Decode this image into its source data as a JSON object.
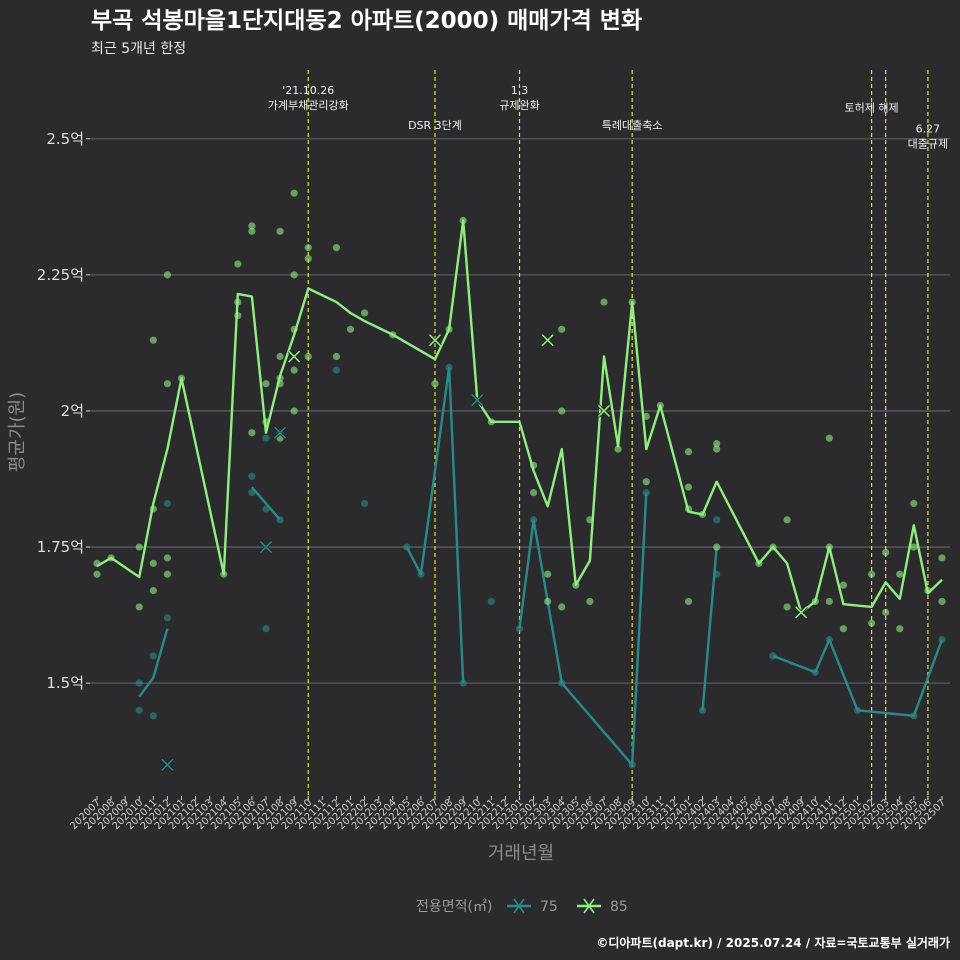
{
  "chart_data": {
    "type": "line",
    "title": "부곡 석봉마을1단지대동2 아파트(2000) 매매가격 변화",
    "subtitle": "최근 5개년 한정",
    "xlabel": "거래년월",
    "ylabel": "평균가(원)",
    "ylim": [
      1.3,
      2.63
    ],
    "yticks": [
      {
        "value": 1.5,
        "label": "1.5억"
      },
      {
        "value": 1.75,
        "label": "1.75억"
      },
      {
        "value": 2.0,
        "label": "2억"
      },
      {
        "value": 2.25,
        "label": "2.25억"
      },
      {
        "value": 2.5,
        "label": "2.5억"
      }
    ],
    "categories": [
      "202007",
      "202008",
      "202009",
      "202010",
      "202011",
      "202012",
      "202101",
      "202102",
      "202103",
      "202104",
      "202105",
      "202106",
      "202107",
      "202108",
      "202109",
      "202110",
      "202111",
      "202112",
      "202201",
      "202202",
      "202203",
      "202204",
      "202205",
      "202206",
      "202207",
      "202208",
      "202209",
      "202210",
      "202211",
      "202212",
      "202301",
      "202302",
      "202303",
      "202304",
      "202305",
      "202306",
      "202307",
      "202308",
      "202309",
      "202310",
      "202311",
      "202312",
      "202401",
      "202402",
      "202403",
      "202404",
      "202405",
      "202406",
      "202407",
      "202408",
      "202409",
      "202410",
      "202411",
      "202412",
      "202501",
      "202502",
      "202503",
      "202504",
      "202505",
      "202506",
      "202507"
    ],
    "grid": true,
    "legend_position": "bottom",
    "legend_title": "전용면적(㎡)",
    "series": [
      {
        "name": "75",
        "color": "#2a8a8a",
        "lines": [
          [
            [
              "202010",
              1.475
            ],
            [
              "202011",
              1.51
            ],
            [
              "202012",
              1.6
            ]
          ],
          [
            [
              "202106",
              1.86
            ],
            [
              "202108",
              1.8
            ]
          ],
          [
            [
              "202205",
              1.75
            ],
            [
              "202206",
              1.7
            ],
            [
              "202208",
              2.08
            ],
            [
              "202209",
              1.5
            ]
          ],
          [
            [
              "202301",
              1.6
            ],
            [
              "202302",
              1.8
            ],
            [
              "202304",
              1.5
            ],
            [
              "202309",
              1.35
            ],
            [
              "202310",
              1.85
            ]
          ],
          [
            [
              "202402",
              1.45
            ],
            [
              "202403",
              1.75
            ]
          ],
          [
            [
              "202407",
              1.55
            ],
            [
              "202410",
              1.52
            ],
            [
              "202411",
              1.58
            ],
            [
              "202501",
              1.45
            ],
            [
              "202505",
              1.44
            ],
            [
              "202507",
              1.58
            ]
          ]
        ],
        "points": [
          [
            "202010",
            1.5
          ],
          [
            "202010",
            1.45
          ],
          [
            "202011",
            1.44
          ],
          [
            "202011",
            1.55
          ],
          [
            "202012",
            1.62
          ],
          [
            "202012",
            1.83
          ],
          [
            "202106",
            1.88
          ],
          [
            "202106",
            1.85
          ],
          [
            "202107",
            1.82
          ],
          [
            "202107",
            1.6
          ],
          [
            "202107",
            1.95
          ],
          [
            "202108",
            1.8
          ],
          [
            "202108",
            1.96
          ],
          [
            "202112",
            2.075
          ],
          [
            "202202",
            1.83
          ],
          [
            "202205",
            1.75
          ],
          [
            "202206",
            1.7
          ],
          [
            "202208",
            2.08
          ],
          [
            "202209",
            1.5
          ],
          [
            "202211",
            1.65
          ],
          [
            "202301",
            1.6
          ],
          [
            "202302",
            1.8
          ],
          [
            "202304",
            1.5
          ],
          [
            "202309",
            1.35
          ],
          [
            "202310",
            1.85
          ],
          [
            "202402",
            1.45
          ],
          [
            "202403",
            1.8
          ],
          [
            "202403",
            1.7
          ],
          [
            "202407",
            1.55
          ],
          [
            "202410",
            1.52
          ],
          [
            "202411",
            1.58
          ],
          [
            "202501",
            1.45
          ],
          [
            "202505",
            1.44
          ],
          [
            "202507",
            1.58
          ]
        ],
        "cancelled": [
          [
            "202012",
            1.35
          ],
          [
            "202107",
            1.75
          ],
          [
            "202108",
            1.96
          ],
          [
            "202210",
            2.02
          ]
        ]
      },
      {
        "name": "85",
        "color": "#90ee80",
        "lines": [
          [
            [
              "202007",
              1.715
            ],
            [
              "202008",
              1.73
            ],
            [
              "202010",
              1.695
            ],
            [
              "202011",
              1.83
            ],
            [
              "202012",
              1.93
            ],
            [
              "202101",
              2.06
            ],
            [
              "202104",
              1.7
            ],
            [
              "202105",
              2.215
            ],
            [
              "202106",
              2.21
            ],
            [
              "202107",
              1.96
            ],
            [
              "202108",
              2.065
            ],
            [
              "202109",
              2.14
            ],
            [
              "202110",
              2.225
            ],
            [
              "202112",
              2.2
            ],
            [
              "202201",
              2.18
            ],
            [
              "202202",
              2.165
            ],
            [
              "202204",
              2.14
            ],
            [
              "202207",
              2.095
            ],
            [
              "202208",
              2.15
            ],
            [
              "202209",
              2.35
            ],
            [
              "202210",
              2.02
            ],
            [
              "202211",
              1.98
            ],
            [
              "202301",
              1.98
            ],
            [
              "202302",
              1.89
            ],
            [
              "202303",
              1.825
            ],
            [
              "202304",
              1.93
            ],
            [
              "202305",
              1.68
            ],
            [
              "202306",
              1.725
            ],
            [
              "202307",
              2.1
            ],
            [
              "202308",
              1.935
            ],
            [
              "202309",
              2.2
            ],
            [
              "202310",
              1.93
            ],
            [
              "202311",
              2.01
            ],
            [
              "202401",
              1.815
            ],
            [
              "202402",
              1.81
            ],
            [
              "202403",
              1.87
            ],
            [
              "202406",
              1.72
            ],
            [
              "202407",
              1.75
            ],
            [
              "202408",
              1.72
            ],
            [
              "202409",
              1.63
            ],
            [
              "202410",
              1.65
            ],
            [
              "202411",
              1.75
            ],
            [
              "202412",
              1.645
            ],
            [
              "202502",
              1.64
            ],
            [
              "202503",
              1.685
            ],
            [
              "202504",
              1.655
            ],
            [
              "202505",
              1.79
            ],
            [
              "202506",
              1.665
            ],
            [
              "202507",
              1.69
            ]
          ]
        ],
        "points": [
          [
            "202007",
            1.72
          ],
          [
            "202007",
            1.7
          ],
          [
            "202008",
            1.73
          ],
          [
            "202010",
            1.75
          ],
          [
            "202010",
            1.64
          ],
          [
            "202011",
            1.82
          ],
          [
            "202011",
            2.13
          ],
          [
            "202011",
            1.67
          ],
          [
            "202011",
            1.72
          ],
          [
            "202012",
            1.73
          ],
          [
            "202012",
            2.25
          ],
          [
            "202012",
            2.05
          ],
          [
            "202012",
            1.7
          ],
          [
            "202101",
            2.06
          ],
          [
            "202104",
            1.7
          ],
          [
            "202105",
            2.2
          ],
          [
            "202105",
            2.175
          ],
          [
            "202105",
            2.27
          ],
          [
            "202106",
            2.34
          ],
          [
            "202106",
            2.33
          ],
          [
            "202106",
            1.96
          ],
          [
            "202107",
            2.05
          ],
          [
            "202107",
            1.98
          ],
          [
            "202108",
            2.33
          ],
          [
            "202108",
            2.05
          ],
          [
            "202108",
            2.06
          ],
          [
            "202108",
            2.1
          ],
          [
            "202108",
            1.95
          ],
          [
            "202109",
            2.4
          ],
          [
            "202109",
            2.25
          ],
          [
            "202109",
            2.15
          ],
          [
            "202109",
            2.075
          ],
          [
            "202109",
            2.0
          ],
          [
            "202110",
            2.3
          ],
          [
            "202110",
            2.28
          ],
          [
            "202110",
            2.1
          ],
          [
            "202112",
            2.3
          ],
          [
            "202112",
            2.1
          ],
          [
            "202201",
            2.15
          ],
          [
            "202202",
            2.18
          ],
          [
            "202204",
            2.14
          ],
          [
            "202207",
            2.05
          ],
          [
            "202208",
            2.15
          ],
          [
            "202209",
            2.35
          ],
          [
            "202211",
            1.98
          ],
          [
            "202302",
            1.9
          ],
          [
            "202302",
            1.85
          ],
          [
            "202303",
            1.7
          ],
          [
            "202303",
            1.65
          ],
          [
            "202304",
            2.15
          ],
          [
            "202304",
            2.0
          ],
          [
            "202304",
            1.64
          ],
          [
            "202305",
            1.68
          ],
          [
            "202306",
            1.8
          ],
          [
            "202306",
            1.65
          ],
          [
            "202307",
            2.2
          ],
          [
            "202308",
            1.93
          ],
          [
            "202309",
            2.2
          ],
          [
            "202310",
            1.99
          ],
          [
            "202310",
            1.87
          ],
          [
            "202311",
            2.01
          ],
          [
            "202401",
            1.925
          ],
          [
            "202401",
            1.86
          ],
          [
            "202401",
            1.82
          ],
          [
            "202401",
            1.65
          ],
          [
            "202402",
            1.81
          ],
          [
            "202403",
            1.94
          ],
          [
            "202403",
            1.93
          ],
          [
            "202403",
            1.75
          ],
          [
            "202406",
            1.72
          ],
          [
            "202407",
            1.75
          ],
          [
            "202408",
            1.8
          ],
          [
            "202408",
            1.64
          ],
          [
            "202410",
            1.65
          ],
          [
            "202411",
            1.95
          ],
          [
            "202411",
            1.75
          ],
          [
            "202411",
            1.65
          ],
          [
            "202412",
            1.68
          ],
          [
            "202412",
            1.6
          ],
          [
            "202502",
            1.7
          ],
          [
            "202502",
            1.61
          ],
          [
            "202503",
            1.74
          ],
          [
            "202503",
            1.63
          ],
          [
            "202504",
            1.7
          ],
          [
            "202504",
            1.6
          ],
          [
            "202505",
            1.83
          ],
          [
            "202505",
            1.75
          ],
          [
            "202506",
            1.67
          ],
          [
            "202507",
            1.73
          ],
          [
            "202507",
            1.65
          ]
        ],
        "cancelled": [
          [
            "202109",
            2.1
          ],
          [
            "202207",
            2.13
          ],
          [
            "202303",
            2.13
          ],
          [
            "202307",
            2.0
          ],
          [
            "202409",
            1.63
          ]
        ]
      }
    ],
    "annotations": [
      {
        "x": "202110",
        "lines": [
          "'21.10.26",
          "가계부채관리강화"
        ],
        "level": 0
      },
      {
        "x": "202207",
        "lines": [
          "DSR 3단계"
        ],
        "level": 1
      },
      {
        "x": "202301",
        "lines": [
          "1.3",
          "규제완화"
        ],
        "level": 0
      },
      {
        "x": "202309",
        "lines": [
          "특례대출축소"
        ],
        "level": 1
      },
      {
        "x": "202502",
        "lines": [
          "토허제 해제"
        ],
        "level": 0.5
      },
      {
        "x": "202503",
        "lines": [],
        "level": 0
      },
      {
        "x": "202506",
        "lines": [
          "6.27",
          "대출규제"
        ],
        "level": 1.1
      }
    ]
  },
  "caption": "©디아파트(dapt.kr) / 2025.07.24 / 자료=국토교통부 실거래가"
}
